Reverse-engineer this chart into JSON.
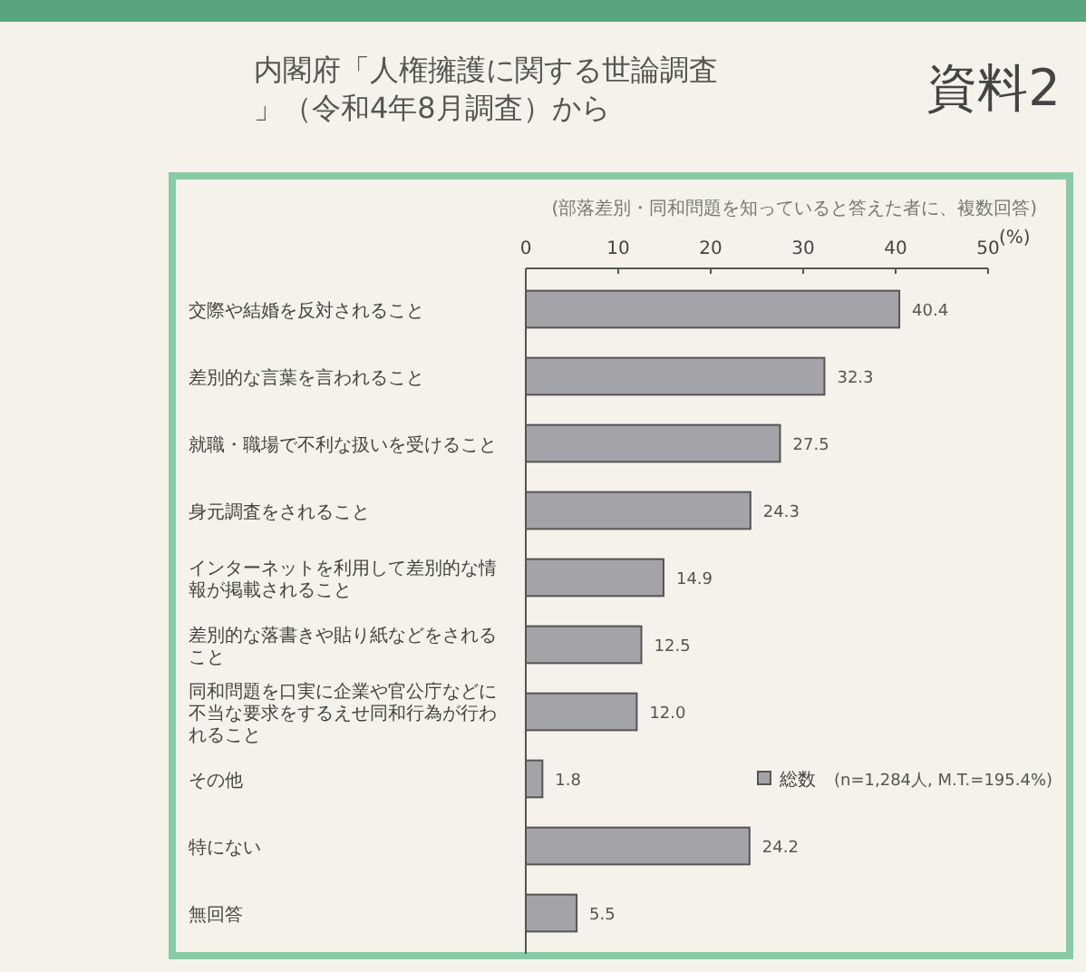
{
  "chart_data": {
    "type": "bar",
    "orientation": "horizontal",
    "title": "内閣府「人権擁護に関する世論調査」（令和4年8月調査）から",
    "subtitle": "(部落差別・同和問題を知っていると答えた者に、複数回答)",
    "xlabel": "(%)",
    "categories": [
      "交際や結婚を反対されること",
      "差別的な言葉を言われること",
      "就職・職場で不利な扱いを受けること",
      "身元調査をされること",
      "インターネットを利用して差別的な情報が掲載されること",
      "差別的な落書きや貼り紙などをされること",
      "同和問題を口実に企業や官公庁などに不当な要求をするえせ同和行為が行われること",
      "その他",
      "特にない",
      "無回答"
    ],
    "series": [
      {
        "name": "総数",
        "color": "#a3a3a8",
        "values": [
          40.4,
          32.3,
          27.5,
          24.3,
          14.9,
          12.5,
          12.0,
          1.8,
          24.2,
          5.5
        ],
        "value_labels": [
          "40.4",
          "32.3",
          "27.5",
          "24.3",
          "14.9",
          "12.5",
          "12.0",
          "1.8",
          "24.2",
          "5.5"
        ]
      }
    ],
    "xlim": [
      0,
      50
    ],
    "xticks": [
      0,
      10,
      20,
      30,
      40,
      50
    ],
    "legend": "right",
    "grid": false,
    "annotations": [
      "資料2",
      "(n=1,284人, M.T.=195.4%)"
    ]
  }
}
